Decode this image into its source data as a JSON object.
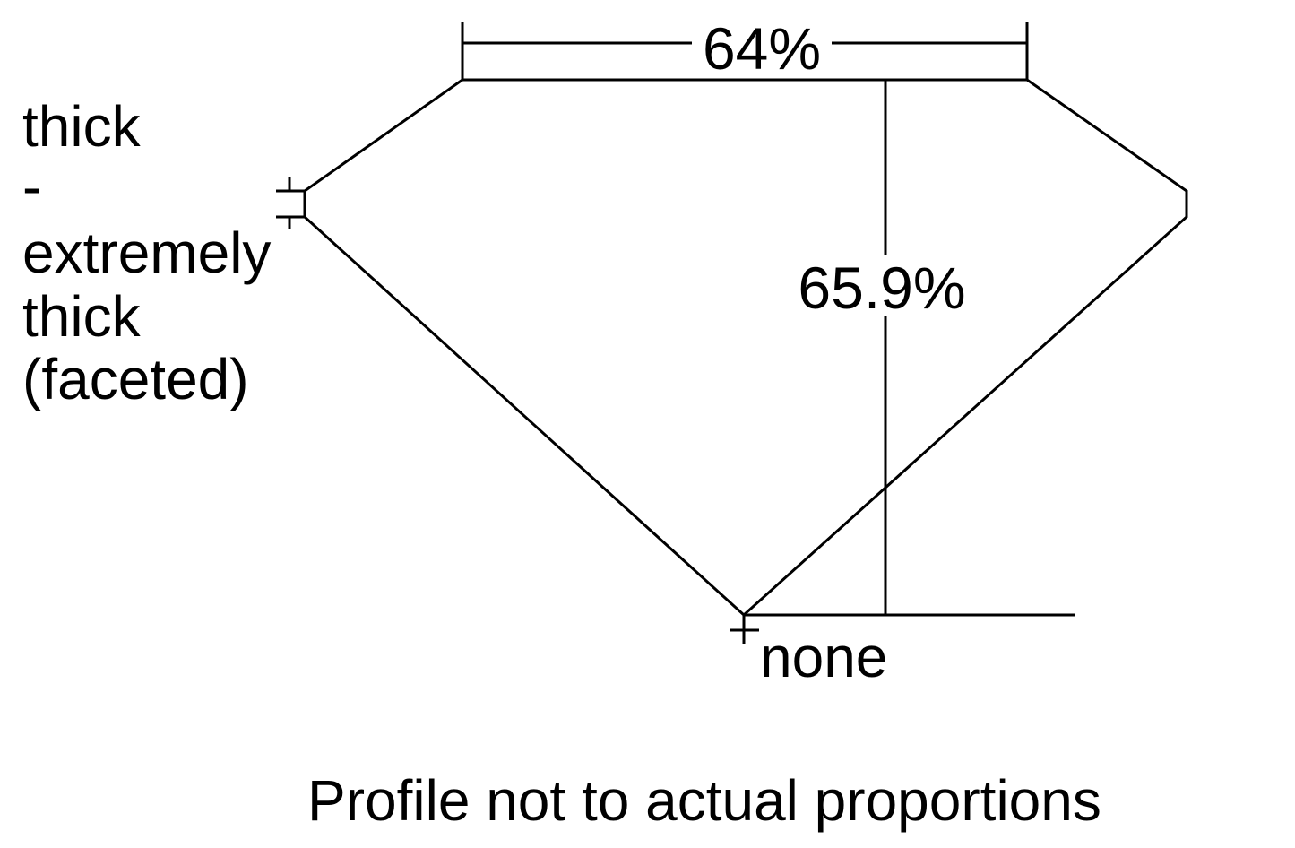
{
  "labels": {
    "table_percent": "64%",
    "depth_percent": "65.9%",
    "girdle_lines": [
      "thick",
      "-",
      "extremely",
      "thick",
      "(faceted)"
    ],
    "culet": "none",
    "footnote": "Profile not to actual proportions"
  },
  "colors": {
    "line": "#000000",
    "background": "#ffffff"
  }
}
